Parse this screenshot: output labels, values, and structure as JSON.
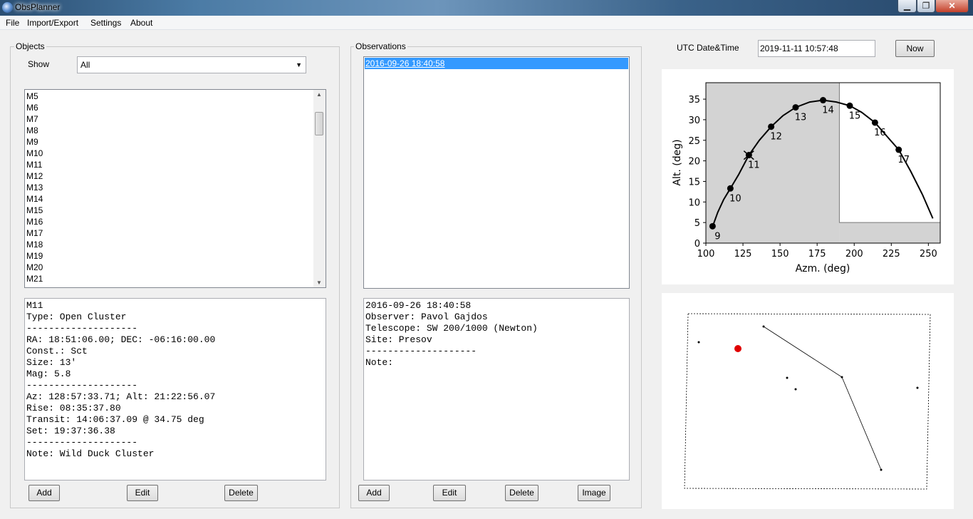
{
  "window": {
    "title": "ObsPlanner",
    "min_glyph": "▁",
    "max_glyph": "❐",
    "close_glyph": "✕"
  },
  "menu": [
    "File",
    "Import/Export",
    "Settings",
    "About"
  ],
  "objects": {
    "group_label": "Objects",
    "show_label": "Show",
    "show_value": "All",
    "items": [
      "M5",
      "M6",
      "M7",
      "M8",
      "M9",
      "M10",
      "M11",
      "M12",
      "M13",
      "M14",
      "M15",
      "M16",
      "M17",
      "M18",
      "M19",
      "M20",
      "M21"
    ],
    "details": [
      "M11",
      "Type: Open Cluster",
      "--------------------",
      "RA: 18:51:06.00; DEC: -06:16:00.00",
      "Const.: Sct",
      "Size: 13'",
      "Mag: 5.8",
      "--------------------",
      "Az: 128:57:33.71; Alt: 21:22:56.07",
      "Rise: 08:35:37.80",
      "Transit: 14:06:37.09 @ 34.75 deg",
      "Set: 19:37:36.38",
      "--------------------",
      "Note: Wild Duck Cluster"
    ],
    "buttons": {
      "add": "Add",
      "edit": "Edit",
      "delete": "Delete"
    }
  },
  "observations": {
    "group_label": "Observations",
    "items": [
      "2016-09-26 18:40:58"
    ],
    "details": [
      "2016-09-26 18:40:58",
      "Observer: Pavol Gajdos",
      "Telescope: SW 200/1000 (Newton)",
      "Site: Presov",
      "--------------------",
      "Note:"
    ],
    "buttons": {
      "add": "Add",
      "edit": "Edit",
      "delete": "Delete",
      "image": "Image"
    }
  },
  "datetime": {
    "label": "UTC Date&Time",
    "value": "2019-11-11 10:57:48",
    "now_button": "Now"
  },
  "chart_data": {
    "type": "line",
    "xlabel": "Azm. (deg)",
    "ylabel": "Alt. (deg)",
    "xlim": [
      100,
      258
    ],
    "ylim": [
      0,
      39
    ],
    "xticks": [
      100,
      125,
      150,
      175,
      200,
      225,
      250
    ],
    "yticks": [
      0,
      5,
      10,
      15,
      20,
      25,
      30,
      35
    ],
    "curve": [
      [
        104.5,
        4
      ],
      [
        108,
        7.5
      ],
      [
        112,
        10.6
      ],
      [
        116.5,
        13.3
      ],
      [
        122,
        16.6
      ],
      [
        129,
        21.4
      ],
      [
        136,
        25
      ],
      [
        144,
        28.3
      ],
      [
        152,
        31
      ],
      [
        160.5,
        33
      ],
      [
        170,
        34.3
      ],
      [
        179,
        34.75
      ],
      [
        188,
        34.3
      ],
      [
        197,
        33.4
      ],
      [
        205,
        31.8
      ],
      [
        214,
        29.3
      ],
      [
        222,
        26
      ],
      [
        230,
        22.7
      ],
      [
        238,
        17.5
      ],
      [
        246,
        11.8
      ],
      [
        253,
        6
      ]
    ],
    "points": [
      {
        "x": 104.5,
        "y": 4.1,
        "label": "9"
      },
      {
        "x": 116.5,
        "y": 13.3,
        "label": "10"
      },
      {
        "x": 129,
        "y": 21.4,
        "label": "11"
      },
      {
        "x": 144,
        "y": 28.3,
        "label": "12"
      },
      {
        "x": 160.5,
        "y": 33.0,
        "label": "13"
      },
      {
        "x": 179,
        "y": 34.75,
        "label": "14"
      },
      {
        "x": 197,
        "y": 33.4,
        "label": "15"
      },
      {
        "x": 214,
        "y": 29.3,
        "label": "16"
      },
      {
        "x": 230,
        "y": 22.7,
        "label": "17"
      }
    ],
    "current_marker": {
      "x": 128.96,
      "y": 21.38
    },
    "shaded_region": {
      "x_from": 100,
      "x_to": 190,
      "y_from": 0,
      "y_to": 39,
      "x2_from": 190,
      "x2_to": 258,
      "y2_from": 0,
      "y2_to": 5
    },
    "grid": false
  }
}
